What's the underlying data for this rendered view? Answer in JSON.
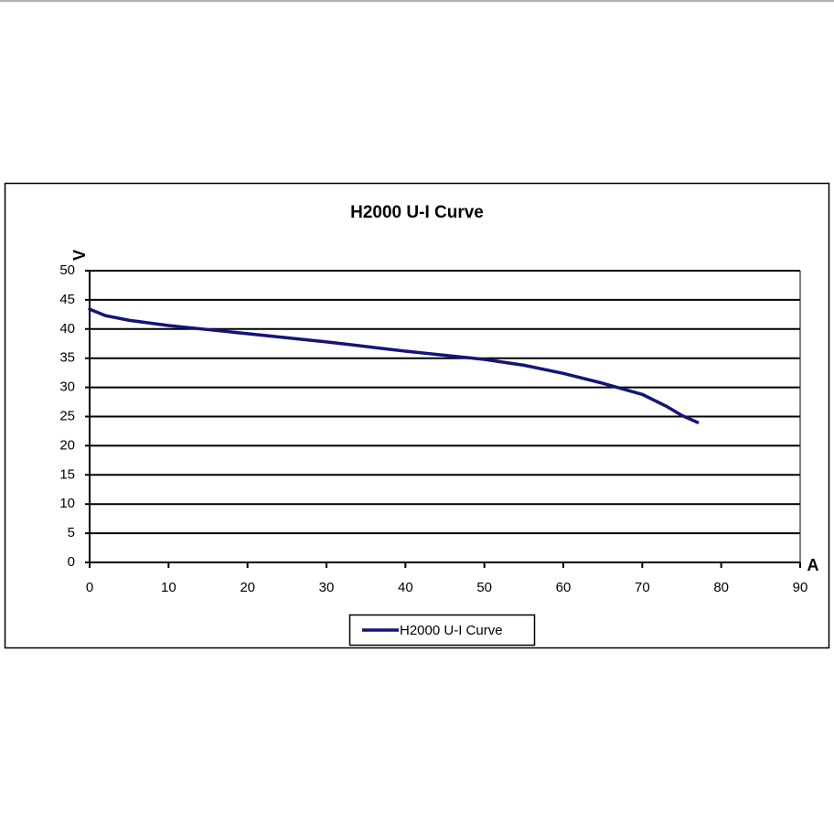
{
  "chart_data": {
    "type": "line",
    "title": "H2000 U-I Curve",
    "x_label": "A",
    "y_label": "V",
    "x": [
      0,
      2,
      5,
      10,
      15,
      20,
      30,
      40,
      50,
      55,
      60,
      65,
      70,
      73,
      75,
      77
    ],
    "series": [
      {
        "name": "H2000 U-I Curve",
        "color": "#141478",
        "values": [
          43.4,
          42.3,
          41.5,
          40.6,
          39.9,
          39.2,
          37.8,
          36.2,
          34.8,
          33.8,
          32.4,
          30.7,
          28.8,
          26.8,
          25.2,
          24
        ]
      }
    ],
    "xlim": [
      0,
      90
    ],
    "xticks": [
      0,
      10,
      20,
      30,
      40,
      50,
      60,
      70,
      80,
      90
    ],
    "ylim": [
      0,
      50
    ],
    "yticks": [
      0,
      5,
      10,
      15,
      20,
      25,
      30,
      35,
      40,
      45,
      50
    ],
    "grid": true,
    "legend": "bottom"
  }
}
